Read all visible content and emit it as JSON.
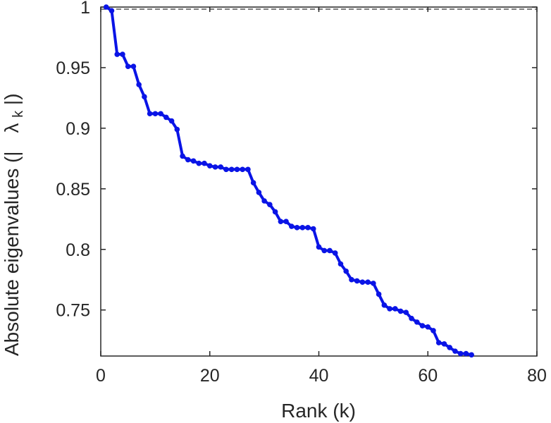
{
  "chart_data": {
    "type": "line",
    "xlabel": "Rank (k)",
    "ylabel_main": "Absolute eigenvalues (|",
    "ylabel_symbol": "λ",
    "ylabel_subscript": "k",
    "ylabel_close": "|)",
    "xlim": [
      0,
      80
    ],
    "ylim": [
      0.712,
      1.0
    ],
    "xticks": [
      0,
      20,
      40,
      60,
      80
    ],
    "yticks": [
      0.75,
      0.8,
      0.85,
      0.9,
      0.95,
      1
    ],
    "ytick_labels": [
      "0.75",
      "0.8",
      "0.85",
      "0.9",
      "0.95",
      "1"
    ],
    "grid": false,
    "series_color": "#0a14e6",
    "reference_line": {
      "y": 1.0,
      "style": "dashed",
      "color": "#555555"
    },
    "series": [
      {
        "x": [
          1,
          2,
          3,
          4,
          5,
          6,
          7,
          8,
          9,
          10,
          11,
          12,
          13,
          14,
          15,
          16,
          17,
          18,
          19,
          20,
          21,
          22,
          23,
          24,
          25,
          26,
          27,
          28,
          29,
          30,
          31,
          32,
          33,
          34,
          35,
          36,
          37,
          38,
          39,
          40,
          41,
          42,
          43,
          44,
          45,
          46,
          47,
          48,
          49,
          50,
          51,
          52,
          53,
          54,
          55,
          56,
          57,
          58,
          59,
          60,
          61,
          62,
          63,
          64,
          65,
          66,
          67,
          68
        ],
        "y": [
          1.0,
          0.997,
          0.961,
          0.961,
          0.951,
          0.951,
          0.936,
          0.926,
          0.912,
          0.912,
          0.912,
          0.909,
          0.906,
          0.899,
          0.877,
          0.874,
          0.873,
          0.871,
          0.871,
          0.869,
          0.868,
          0.868,
          0.866,
          0.866,
          0.866,
          0.866,
          0.866,
          0.855,
          0.847,
          0.84,
          0.837,
          0.831,
          0.823,
          0.823,
          0.819,
          0.818,
          0.818,
          0.818,
          0.817,
          0.802,
          0.799,
          0.799,
          0.797,
          0.788,
          0.782,
          0.775,
          0.774,
          0.773,
          0.773,
          0.772,
          0.763,
          0.754,
          0.751,
          0.751,
          0.749,
          0.748,
          0.743,
          0.74,
          0.737,
          0.736,
          0.733,
          0.723,
          0.722,
          0.719,
          0.716,
          0.714,
          0.714,
          0.713
        ]
      }
    ]
  }
}
